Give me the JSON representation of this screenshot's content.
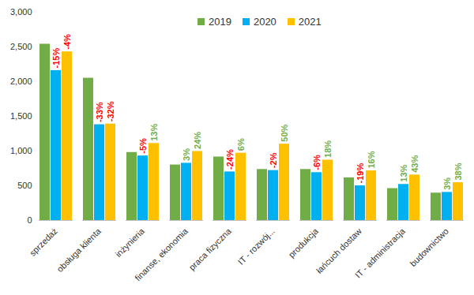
{
  "chart_data": {
    "type": "bar",
    "categories": [
      "sprzedaż",
      "obsługa klienta",
      "inżynieria",
      "finanse, ekonomia",
      "praca fizyczna",
      "IT - rozwój...",
      "produkcja",
      "łańcuch dostaw",
      "IT - administracja",
      "budownictwo"
    ],
    "series": [
      {
        "name": "2019",
        "color": "#70ad47",
        "values": [
          2540,
          2050,
          980,
          800,
          915,
          735,
          735,
          615,
          460,
          395
        ]
      },
      {
        "name": "2020",
        "color": "#00b0f0",
        "values": [
          2160,
          1380,
          930,
          825,
          700,
          720,
          690,
          500,
          520,
          405
        ],
        "annotations": [
          {
            "value": -15,
            "label": "-15%"
          },
          {
            "value": -33,
            "label": "-33%"
          },
          {
            "value": -5,
            "label": "-5%"
          },
          {
            "value": 3,
            "label": "3%"
          },
          {
            "value": -24,
            "label": "-24%"
          },
          {
            "value": -2,
            "label": "-2%"
          },
          {
            "value": -6,
            "label": "-6%"
          },
          {
            "value": -19,
            "label": "-19%"
          },
          {
            "value": 13,
            "label": "13%"
          },
          {
            "value": 3,
            "label": "3%"
          }
        ]
      },
      {
        "name": "2021",
        "color": "#ffc000",
        "values": [
          2430,
          1390,
          1110,
          995,
          970,
          1100,
          870,
          715,
          655,
          545
        ],
        "annotations": [
          {
            "value": -4,
            "label": "-4%"
          },
          {
            "value": -32,
            "label": "-32%"
          },
          {
            "value": 13,
            "label": "13%"
          },
          {
            "value": 24,
            "label": "24%"
          },
          {
            "value": 6,
            "label": "6%"
          },
          {
            "value": 50,
            "label": "50%"
          },
          {
            "value": 18,
            "label": "18%"
          },
          {
            "value": 16,
            "label": "16%"
          },
          {
            "value": 43,
            "label": "43%"
          },
          {
            "value": 38,
            "label": "38%"
          }
        ]
      }
    ],
    "ylim": [
      0,
      3000
    ],
    "yticks": [
      0,
      500,
      1000,
      1500,
      2000,
      2500,
      3000
    ],
    "grid": false,
    "legend": "top"
  }
}
